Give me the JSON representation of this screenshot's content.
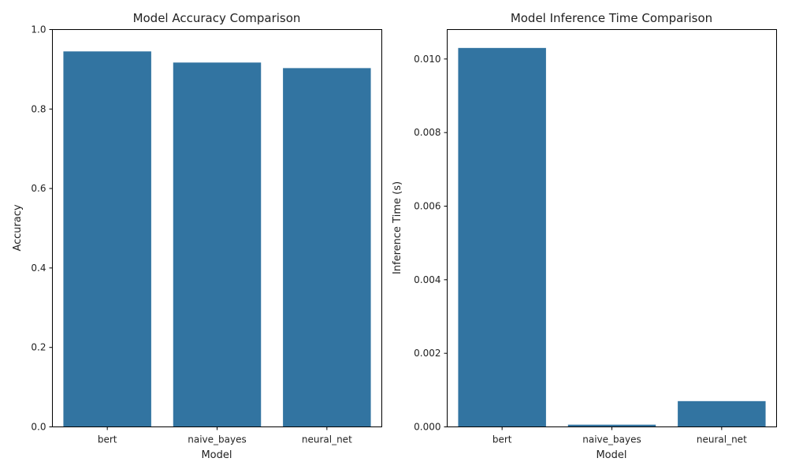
{
  "chart_data": [
    {
      "type": "bar",
      "title": "Model Accuracy Comparison",
      "xlabel": "Model",
      "ylabel": "Accuracy",
      "categories": [
        "bert",
        "naive_bayes",
        "neural_net"
      ],
      "values": [
        0.945,
        0.917,
        0.903
      ],
      "ylim": [
        0,
        1.0
      ],
      "yticks": [
        "0.0",
        "0.2",
        "0.4",
        "0.6",
        "0.8",
        "1.0"
      ],
      "color": "#3274a1",
      "grid": false
    },
    {
      "type": "bar",
      "title": "Model Inference Time Comparison",
      "xlabel": "Model",
      "ylabel": "Inference Time (s)",
      "categories": [
        "bert",
        "naive_bayes",
        "neural_net"
      ],
      "values": [
        0.0103,
        6e-05,
        0.0007
      ],
      "ylim": [
        0,
        0.0108
      ],
      "yticks": [
        "0.000",
        "0.002",
        "0.004",
        "0.006",
        "0.008",
        "0.010"
      ],
      "color": "#3274a1",
      "grid": false
    }
  ]
}
